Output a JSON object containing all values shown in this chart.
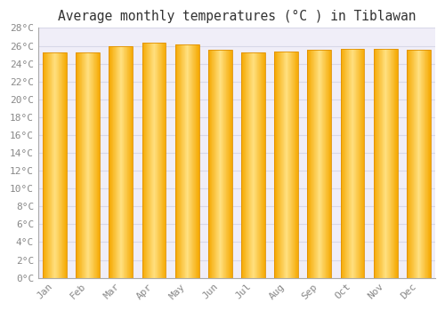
{
  "title": "Average monthly temperatures (°C ) in Tiblawan",
  "months": [
    "Jan",
    "Feb",
    "Mar",
    "Apr",
    "May",
    "Jun",
    "Jul",
    "Aug",
    "Sep",
    "Oct",
    "Nov",
    "Dec"
  ],
  "values": [
    25.3,
    25.3,
    26.0,
    26.4,
    26.2,
    25.6,
    25.3,
    25.4,
    25.6,
    25.7,
    25.7,
    25.6
  ],
  "ylim": [
    0,
    28
  ],
  "yticks": [
    0,
    2,
    4,
    6,
    8,
    10,
    12,
    14,
    16,
    18,
    20,
    22,
    24,
    26,
    28
  ],
  "bar_color_edge": "#F5A800",
  "bar_color_center": "#FFE080",
  "background_color": "#ffffff",
  "plot_bg_color": "#f0eef8",
  "grid_color": "#d8d8e8",
  "title_fontsize": 10.5,
  "tick_fontsize": 8,
  "title_font": "monospace",
  "tick_font": "monospace",
  "tick_color": "#888888"
}
